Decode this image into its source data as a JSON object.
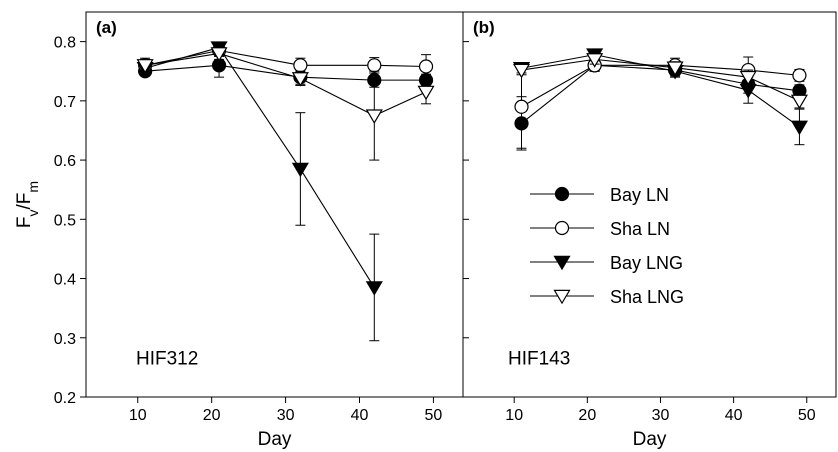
{
  "chart_data": [
    {
      "type": "line",
      "panel_label": "(a)",
      "annotation": "HIF312",
      "xlabel": "Day",
      "ylabel": "Fv/Fm",
      "ylabel_main": "F",
      "ylabel_sub1": "v",
      "ylabel_slash": "/F",
      "ylabel_sub2": "m",
      "xlim": [
        3,
        54
      ],
      "ylim": [
        0.2,
        0.85
      ],
      "xticks": [
        10,
        20,
        30,
        40,
        50
      ],
      "yticks": [
        0.2,
        0.3,
        0.4,
        0.5,
        0.6,
        0.7,
        0.8
      ],
      "xtick_labels": [
        "10",
        "20",
        "30",
        "40",
        "50"
      ],
      "ytick_labels": [
        "0.2",
        "0.3",
        "0.4",
        "0.5",
        "0.6",
        "0.7",
        "0.8"
      ],
      "series": [
        {
          "name": "Bay LN",
          "marker": "circle-filled",
          "x": [
            11,
            21,
            32,
            42,
            49
          ],
          "y": [
            0.75,
            0.76,
            0.74,
            0.735,
            0.735
          ],
          "err": [
            0.006,
            0.02,
            0.012,
            0.012,
            0.01
          ]
        },
        {
          "name": "Sha LN",
          "marker": "circle-open",
          "x": [
            11,
            21,
            32,
            42,
            49
          ],
          "y": [
            0.76,
            0.785,
            0.76,
            0.76,
            0.758
          ],
          "err": [
            0.012,
            0.01,
            0.012,
            0.013,
            0.02
          ]
        },
        {
          "name": "Bay LNG",
          "marker": "triangle-down-filled",
          "x": [
            11,
            21,
            32,
            42
          ],
          "y": [
            0.755,
            0.79,
            0.585,
            0.385
          ],
          "err": [
            0.01,
            0.006,
            0.095,
            0.09
          ]
        },
        {
          "name": "Sha LNG",
          "marker": "triangle-down-open",
          "x": [
            11,
            21,
            32,
            42,
            49
          ],
          "y": [
            0.76,
            0.78,
            0.738,
            0.675,
            0.715
          ],
          "err": [
            0.01,
            0.01,
            0.012,
            0.075,
            0.02
          ]
        }
      ]
    },
    {
      "type": "line",
      "panel_label": "(b)",
      "annotation": "HIF143",
      "xlabel": "Day",
      "xlim": [
        3,
        54
      ],
      "ylim": [
        0.2,
        0.85
      ],
      "xticks": [
        10,
        20,
        30,
        40,
        50
      ],
      "xtick_labels": [
        "10",
        "20",
        "30",
        "40",
        "50"
      ],
      "series": [
        {
          "name": "Bay LN",
          "marker": "circle-filled",
          "x": [
            11,
            21,
            32,
            42,
            49
          ],
          "y": [
            0.662,
            0.76,
            0.752,
            0.728,
            0.717
          ],
          "err": [
            0.045,
            0.01,
            0.01,
            0.015,
            0.01
          ]
        },
        {
          "name": "Sha LN",
          "marker": "circle-open",
          "x": [
            11,
            21,
            32,
            42,
            49
          ],
          "y": [
            0.69,
            0.76,
            0.76,
            0.752,
            0.743
          ],
          "err": [
            0.07,
            0.01,
            0.012,
            0.022,
            0.01
          ]
        },
        {
          "name": "Bay LNG",
          "marker": "triangle-down-filled",
          "x": [
            11,
            21,
            32,
            42,
            49
          ],
          "y": [
            0.755,
            0.778,
            0.75,
            0.718,
            0.656
          ],
          "err": [
            0.008,
            0.008,
            0.01,
            0.022,
            0.03
          ]
        },
        {
          "name": "Sha LNG",
          "marker": "triangle-down-open",
          "x": [
            11,
            21,
            32,
            42,
            49
          ],
          "y": [
            0.752,
            0.77,
            0.756,
            0.74,
            0.7
          ],
          "err": [
            0.008,
            0.008,
            0.01,
            0.012,
            0.012
          ]
        }
      ]
    }
  ],
  "legend": {
    "placement": "panel-b-center",
    "entries": [
      {
        "label": "Bay LN",
        "marker": "circle-filled"
      },
      {
        "label": "Sha LN",
        "marker": "circle-open"
      },
      {
        "label": "Bay LNG",
        "marker": "triangle-down-filled"
      },
      {
        "label": "Sha LNG",
        "marker": "triangle-down-open"
      }
    ]
  }
}
